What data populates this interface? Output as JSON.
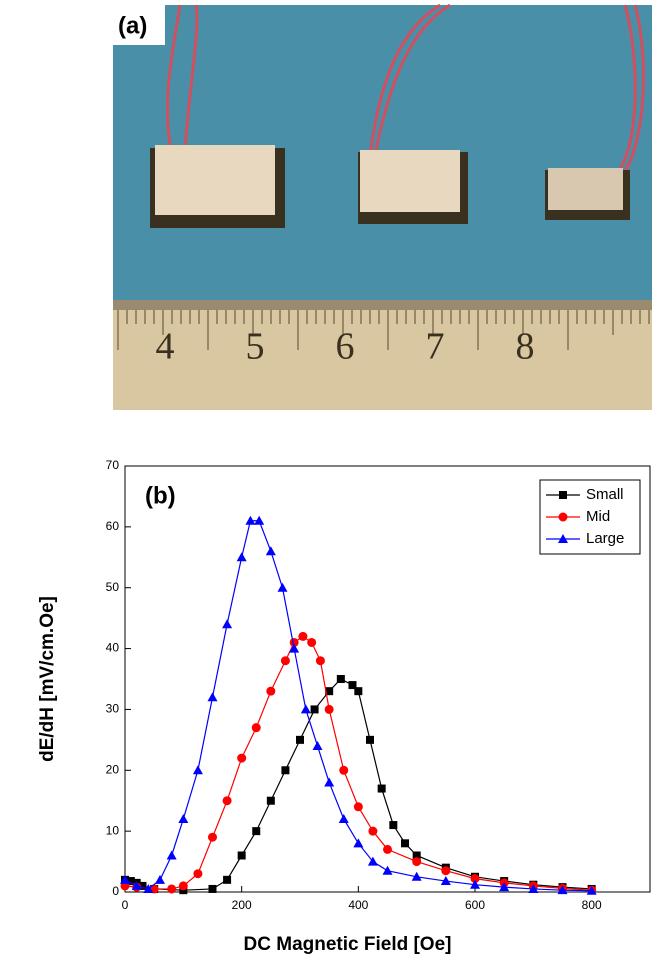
{
  "panel_a": {
    "label": "(a)",
    "ruler_labels": [
      "4",
      "5",
      "6",
      "7",
      "8"
    ]
  },
  "chart_data": {
    "type": "line",
    "annotation": "(b)",
    "xlabel": "DC Magnetic Field [Oe]",
    "ylabel": "dE/dH [mV/cm.Oe]",
    "xlim": [
      0,
      900
    ],
    "xticks": [
      0,
      200,
      400,
      600,
      800
    ],
    "ylim": [
      0,
      70
    ],
    "yticks": [
      0,
      10,
      20,
      30,
      40,
      50,
      60,
      70
    ],
    "legend": "upper right",
    "series": [
      {
        "name": "Small",
        "color": "#000000",
        "marker": "square",
        "x": [
          0,
          10,
          20,
          30,
          50,
          100,
          150,
          175,
          200,
          225,
          250,
          275,
          300,
          325,
          350,
          370,
          390,
          400,
          420,
          440,
          460,
          480,
          500,
          550,
          600,
          650,
          700,
          750,
          800
        ],
        "values": [
          2,
          1.8,
          1.5,
          1,
          0.5,
          0.3,
          0.5,
          2,
          6,
          10,
          15,
          20,
          25,
          30,
          33,
          35,
          34,
          33,
          25,
          17,
          11,
          8,
          6,
          4,
          2.5,
          1.8,
          1.2,
          0.8,
          0.5
        ]
      },
      {
        "name": "Mid",
        "color": "#ff0000",
        "marker": "circle",
        "x": [
          0,
          20,
          50,
          80,
          100,
          125,
          150,
          175,
          200,
          225,
          250,
          275,
          290,
          305,
          320,
          335,
          350,
          375,
          400,
          425,
          450,
          500,
          550,
          600,
          650,
          700,
          750,
          800
        ],
        "values": [
          1,
          0.8,
          0.5,
          0.5,
          1,
          3,
          9,
          15,
          22,
          27,
          33,
          38,
          41,
          42,
          41,
          38,
          30,
          20,
          14,
          10,
          7,
          5,
          3.5,
          2.2,
          1.5,
          1,
          0.6,
          0.3
        ]
      },
      {
        "name": "Large",
        "color": "#0000ff",
        "marker": "triangle",
        "x": [
          0,
          20,
          40,
          60,
          80,
          100,
          125,
          150,
          175,
          200,
          215,
          230,
          250,
          270,
          290,
          310,
          330,
          350,
          375,
          400,
          425,
          450,
          500,
          550,
          600,
          650,
          700,
          750,
          800
        ],
        "values": [
          2,
          1,
          0.5,
          2,
          6,
          12,
          20,
          32,
          44,
          55,
          61,
          61,
          56,
          50,
          40,
          30,
          24,
          18,
          12,
          8,
          5,
          3.5,
          2.5,
          1.8,
          1.2,
          0.8,
          0.5,
          0.3,
          0.2
        ]
      }
    ]
  }
}
